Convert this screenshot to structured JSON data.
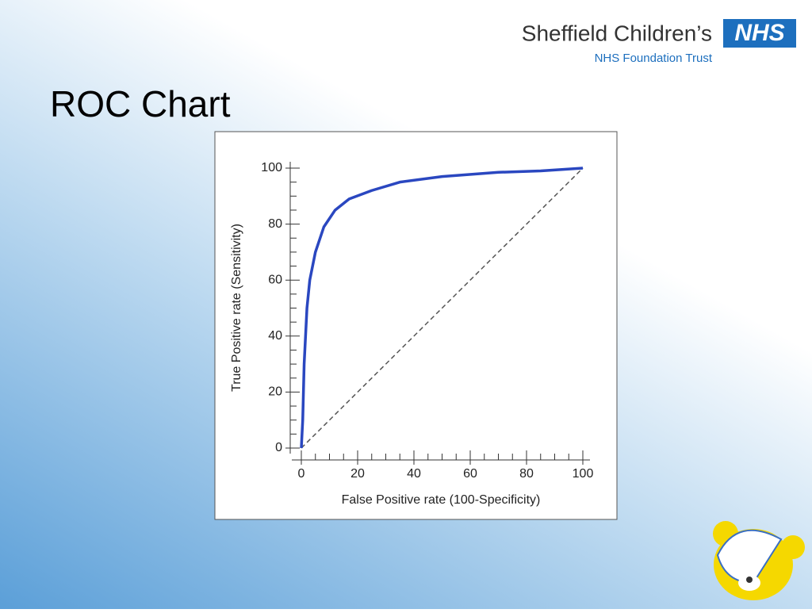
{
  "slide_title": "ROC Chart",
  "logo": {
    "name": "Sheffield Children’s",
    "badge": "NHS",
    "subtitle": "NHS Foundation Trust"
  },
  "chart_data": {
    "type": "line",
    "x_label": "False Positive rate (100-Specificity)",
    "y_label": "True Positive rate (Sensitivity)",
    "series": [
      {
        "color": "#2a47c0",
        "style": "solid",
        "x": [
          0,
          0.5,
          1,
          2,
          3,
          5,
          8,
          12,
          17,
          25,
          35,
          50,
          70,
          85,
          100
        ],
        "values": [
          0,
          10,
          30,
          50,
          60,
          70,
          79,
          85,
          89,
          92,
          95,
          97,
          98.5,
          99,
          100
        ]
      },
      {
        "color": "#555555",
        "style": "dashed",
        "x": [
          0,
          100
        ],
        "values": [
          0,
          100
        ]
      }
    ],
    "xlim": [
      0,
      100
    ],
    "ylim": [
      0,
      100
    ],
    "xticks": [
      0,
      20,
      40,
      60,
      80,
      100
    ],
    "yticks": [
      0,
      20,
      40,
      60,
      80,
      100
    ],
    "x_minor_ticks": [
      5,
      10,
      15,
      25,
      30,
      35,
      45,
      50,
      55,
      65,
      70,
      75,
      85,
      90,
      95
    ],
    "y_minor_ticks": [
      5,
      10,
      15,
      25,
      30,
      35,
      45,
      50,
      55,
      65,
      70,
      75,
      85,
      90,
      95
    ]
  }
}
